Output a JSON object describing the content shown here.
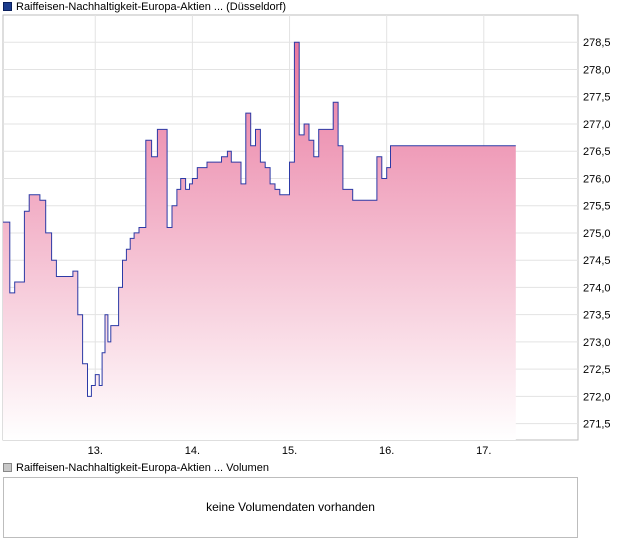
{
  "price_legend": {
    "label": "Raiffeisen-Nachhaltigkeit-Europa-Aktien ... (Düsseldorf)",
    "color": "#1c3c8c"
  },
  "volume_legend": {
    "label": "Raiffeisen-Nachhaltigkeit-Europa-Aktien ... Volumen",
    "color": "#c8c8c8"
  },
  "volume_message": "keine Volumendaten vorhanden",
  "chart_data": {
    "type": "area",
    "line_color": "#2c3aa6",
    "fill_color_top": "#e9789f",
    "fill_color_bottom": "#ffffff",
    "grid": true,
    "y_axis_side": "right",
    "ylim": [
      271.2,
      279.0
    ],
    "y_ticks": [
      "271,5",
      "272,0",
      "272,5",
      "273,0",
      "273,5",
      "274,0",
      "274,5",
      "275,0",
      "275,5",
      "276,0",
      "276,5",
      "277,0",
      "277,5",
      "278,0",
      "278,5"
    ],
    "y_tick_values": [
      271.5,
      272.0,
      272.5,
      273.0,
      273.5,
      274.0,
      274.5,
      275.0,
      275.5,
      276.0,
      276.5,
      277.0,
      277.5,
      278.0,
      278.5
    ],
    "xlim": [
      12.05,
      17.97
    ],
    "x_ticks": [
      "13.",
      "14.",
      "15.",
      "16.",
      "17."
    ],
    "x_tick_values": [
      13,
      14,
      15,
      16,
      17
    ],
    "series": [
      {
        "x": [
          12.05,
          12.12,
          12.17,
          12.21,
          12.27,
          12.32,
          12.37,
          12.43,
          12.49,
          12.55,
          12.6,
          12.66,
          12.71,
          12.77,
          12.82,
          12.87,
          12.92,
          12.96,
          13.0,
          13.02,
          13.04,
          13.07,
          13.1,
          13.13,
          13.16,
          13.2,
          13.24,
          13.28,
          13.32,
          13.36,
          13.4,
          13.45,
          13.52,
          13.58,
          13.64,
          13.69,
          13.74,
          13.79,
          13.84,
          13.88,
          13.93,
          13.97,
          14.0,
          14.05,
          14.1,
          14.15,
          14.2,
          14.25,
          14.3,
          14.36,
          14.4,
          14.44,
          14.5,
          14.55,
          14.6,
          14.65,
          14.7,
          14.75,
          14.8,
          14.85,
          14.9,
          14.95,
          15.0,
          15.05,
          15.1,
          15.15,
          15.2,
          15.25,
          15.3,
          15.35,
          15.4,
          15.45,
          15.5,
          15.55,
          15.6,
          15.65,
          15.7,
          15.75,
          15.8,
          15.85,
          15.9,
          15.95,
          16.0,
          16.04,
          16.08,
          16.12,
          16.16,
          16.2,
          16.25,
          16.3,
          16.35,
          16.4,
          16.45,
          16.5,
          16.55,
          16.6,
          16.65,
          16.7,
          16.75,
          16.8,
          16.85,
          16.9,
          16.95,
          17.0,
          17.04,
          17.08,
          17.12,
          17.17,
          17.22,
          17.27,
          17.33
        ],
        "y": [
          275.2,
          273.9,
          274.1,
          274.1,
          275.4,
          275.7,
          275.7,
          275.6,
          275.0,
          274.5,
          274.2,
          274.2,
          274.2,
          274.3,
          273.5,
          272.6,
          272.0,
          272.2,
          272.4,
          272.4,
          272.2,
          272.8,
          273.5,
          273.0,
          273.3,
          273.3,
          274.0,
          274.5,
          274.7,
          274.9,
          275.0,
          275.1,
          276.7,
          276.4,
          276.9,
          276.9,
          275.1,
          275.5,
          275.8,
          276.0,
          275.8,
          275.9,
          276.0,
          276.2,
          276.2,
          276.3,
          276.3,
          276.3,
          276.4,
          276.5,
          276.3,
          276.3,
          275.9,
          277.2,
          276.6,
          276.9,
          276.3,
          276.2,
          275.9,
          275.8,
          275.7,
          275.7,
          276.3,
          278.5,
          276.8,
          277.0,
          276.7,
          276.4,
          276.9,
          276.9,
          276.9,
          277.4,
          276.6,
          275.8,
          275.8,
          275.6,
          275.6,
          275.6,
          275.6,
          275.6,
          276.4,
          276.0,
          276.2,
          276.6,
          276.6,
          276.6,
          276.6,
          276.6,
          276.6,
          276.6,
          276.6,
          276.6,
          276.6,
          276.6,
          276.6,
          276.6,
          276.6,
          276.6,
          276.6,
          276.6,
          276.6,
          276.6,
          276.6,
          276.6,
          276.6,
          276.6,
          276.6,
          276.6,
          276.6,
          276.6,
          276.6
        ]
      }
    ]
  }
}
